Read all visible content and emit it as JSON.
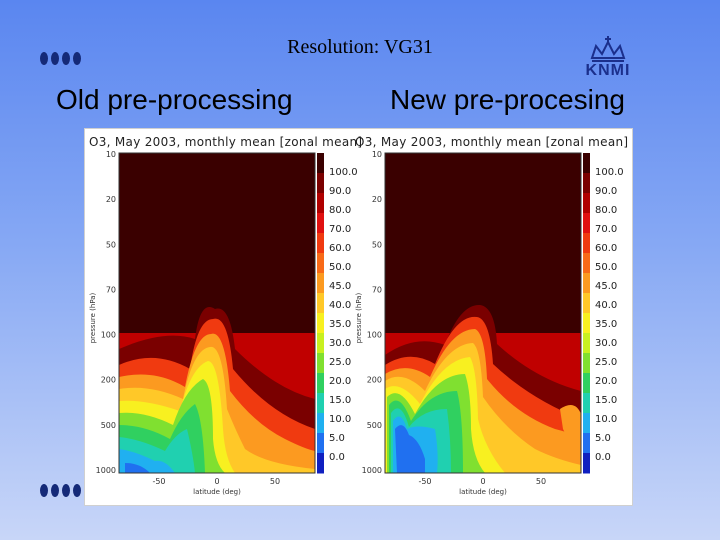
{
  "slide": {
    "title": "Resolution: VG31",
    "left_heading": "Old pre-processing",
    "right_heading": "New pre-procesing",
    "logo_text": "KNMI"
  },
  "colors": {
    "background_top": "#5a86f0",
    "background_bottom": "#c8d6f8",
    "bullet": "#152a78",
    "logo": "#1b2f8c"
  },
  "figure": {
    "panels": [
      {
        "title": "O3, May 2003, monthly mean [zonal mean]",
        "y_ticks": [
          "10",
          "20",
          "50",
          "70",
          "100",
          "200",
          "500",
          "1000"
        ],
        "x_ticks": [
          "-50",
          "0",
          "50"
        ],
        "y_axis_label": "pressure (hPa)",
        "x_axis_label": "latitude (deg)"
      },
      {
        "title": "O3, May 2003, monthly mean [zonal mean]",
        "y_ticks": [
          "10",
          "20",
          "50",
          "70",
          "100",
          "200",
          "500",
          "1000"
        ],
        "x_ticks": [
          "-50",
          "0",
          "50"
        ],
        "y_axis_label": "pressure (hPa)",
        "x_axis_label": "latitude (deg)"
      }
    ],
    "colorbar_labels": [
      "100.0",
      "90.0",
      "80.0",
      "70.0",
      "60.0",
      "50.0",
      "45.0",
      "40.0",
      "35.0",
      "30.0",
      "25.0",
      "20.0",
      "15.0",
      "10.0",
      "5.0",
      "0.0"
    ],
    "colorbar_colors": [
      "#3a0000",
      "#7a0000",
      "#b00000",
      "#e01010",
      "#f03a10",
      "#f86a18",
      "#fc9a20",
      "#ffc828",
      "#f8f020",
      "#c8f020",
      "#80e030",
      "#30d060",
      "#20d0b0",
      "#20b0f0",
      "#2070f0",
      "#1020c0"
    ]
  }
}
